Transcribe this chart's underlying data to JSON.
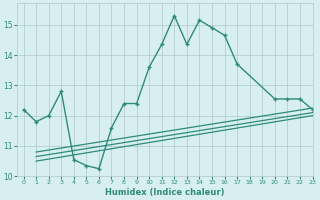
{
  "xlabel": "Humidex (Indice chaleur)",
  "bg_color": "#d7eff0",
  "line_color": "#2e8b7a",
  "grid_color": "#b0c8c8",
  "xlim": [
    -0.5,
    23
  ],
  "ylim": [
    10,
    15.7
  ],
  "yticks": [
    10,
    11,
    12,
    13,
    14,
    15
  ],
  "xticks": [
    0,
    1,
    2,
    3,
    4,
    5,
    6,
    7,
    8,
    9,
    10,
    11,
    12,
    13,
    14,
    15,
    16,
    17,
    18,
    19,
    20,
    21,
    22,
    23
  ],
  "main_x": [
    0,
    1,
    2,
    3,
    4,
    5,
    6,
    7,
    8,
    9,
    10,
    11,
    12,
    13,
    14,
    15,
    16,
    17,
    20,
    21,
    22,
    23
  ],
  "main_y": [
    12.2,
    11.8,
    12.0,
    12.8,
    10.55,
    10.35,
    10.25,
    11.6,
    12.4,
    12.4,
    13.6,
    14.35,
    15.3,
    14.35,
    15.15,
    14.9,
    14.65,
    13.7,
    12.55,
    12.55,
    12.55,
    12.2
  ],
  "line1_x": [
    1,
    23
  ],
  "line1_y": [
    10.5,
    12.0
  ],
  "line2_x": [
    1,
    23
  ],
  "line2_y": [
    10.65,
    12.1
  ],
  "line3_x": [
    1,
    23
  ],
  "line3_y": [
    10.8,
    12.25
  ]
}
